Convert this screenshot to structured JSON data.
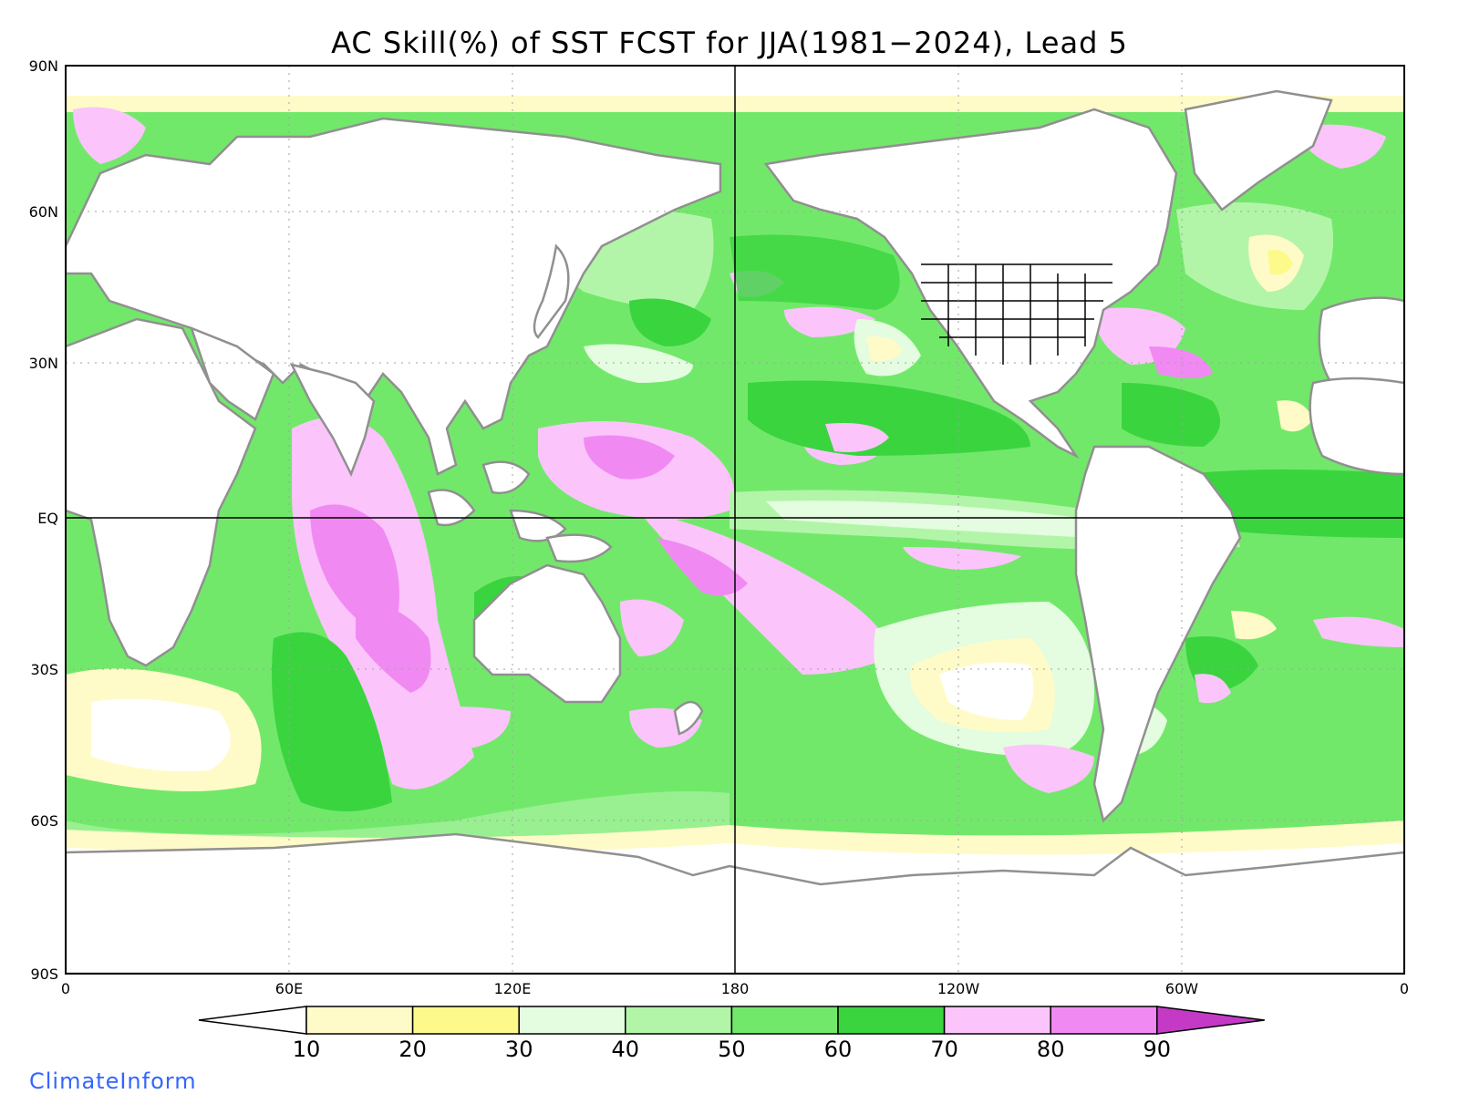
{
  "title": "AC Skill(%) of SST FCST for JJA(1981−2024), Lead 5",
  "credit": "ClimateInform",
  "latitude_labels": [
    "90N",
    "60N",
    "30N",
    "EQ",
    "30S",
    "60S",
    "90S"
  ],
  "longitude_labels": [
    "0",
    "60E",
    "120E",
    "180",
    "120W",
    "60W",
    "0"
  ],
  "colorbar": {
    "ticks": [
      "10",
      "20",
      "30",
      "40",
      "50",
      "60",
      "70",
      "80",
      "90"
    ],
    "colors": [
      "#ffffff",
      "#fffbc8",
      "#fdf98a",
      "#e4fce0",
      "#b2f5a8",
      "#72e86b",
      "#3ad43f",
      "#fbc4fb",
      "#f08af2",
      "#c43ac6"
    ]
  },
  "map_colors": {
    "land": "#ffffff",
    "coastline": "#909090",
    "lakes_and_states": "#000000",
    "axis_lines": "#000000",
    "gridlines": "#a0a0a0"
  }
}
